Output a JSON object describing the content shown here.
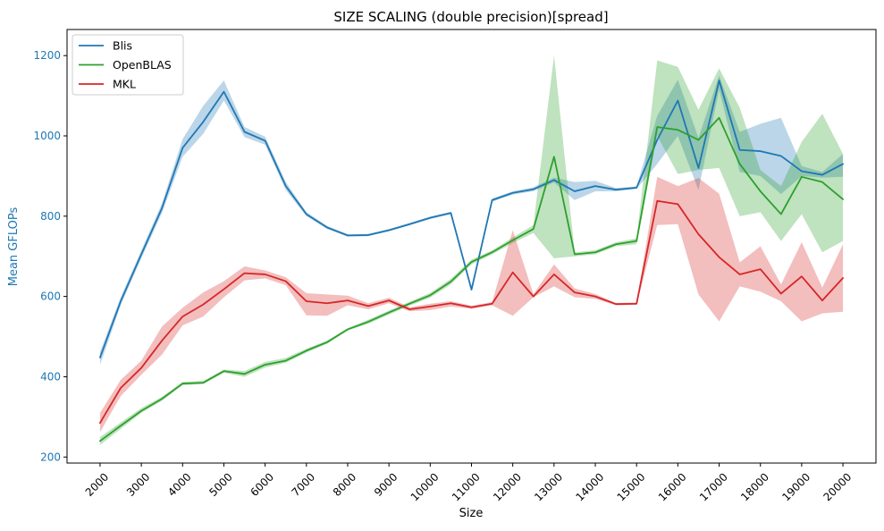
{
  "chart_data": {
    "type": "line",
    "title": "SIZE SCALING (double precision)[spread]",
    "xlabel": "Size",
    "ylabel": "Mean GFLOPs",
    "xlim": [
      1200,
      20800
    ],
    "ylim": [
      185,
      1265
    ],
    "x_ticks": [
      2000,
      3000,
      4000,
      5000,
      6000,
      7000,
      8000,
      9000,
      10000,
      11000,
      12000,
      13000,
      14000,
      15000,
      16000,
      17000,
      18000,
      19000,
      20000
    ],
    "y_ticks": [
      200,
      400,
      600,
      800,
      1000,
      1200
    ],
    "grid": false,
    "legend_position": "upper-left",
    "ylabel_color": "#1f77b4",
    "x": [
      2000,
      2500,
      3000,
      3500,
      4000,
      4500,
      5000,
      5500,
      6000,
      6500,
      7000,
      7500,
      8000,
      8500,
      9000,
      9500,
      10000,
      10500,
      11000,
      11500,
      12000,
      12500,
      13000,
      13500,
      14000,
      14500,
      15000,
      15500,
      16000,
      16500,
      17000,
      17500,
      18000,
      18500,
      19000,
      19500,
      20000
    ],
    "series": [
      {
        "name": "Blis",
        "color": "#1f77b4",
        "values": [
          448,
          588,
          705,
          820,
          970,
          1035,
          1110,
          1010,
          988,
          875,
          805,
          772,
          752,
          753,
          765,
          780,
          796,
          808,
          617,
          840,
          858,
          867,
          890,
          862,
          875,
          866,
          871,
          990,
          1088,
          920,
          1138,
          965,
          962,
          950,
          912,
          903,
          930
        ],
        "lower": [
          430,
          578,
          695,
          808,
          948,
          1005,
          1088,
          997,
          978,
          865,
          800,
          768,
          749,
          750,
          762,
          777,
          793,
          805,
          614,
          836,
          854,
          862,
          884,
          840,
          862,
          862,
          868,
          930,
          1000,
          865,
          1115,
          910,
          900,
          855,
          900,
          896,
          898
        ],
        "upper": [
          462,
          598,
          715,
          832,
          992,
          1075,
          1138,
          1022,
          998,
          885,
          810,
          776,
          755,
          756,
          768,
          783,
          799,
          811,
          620,
          844,
          862,
          872,
          896,
          885,
          888,
          870,
          874,
          1050,
          1140,
          995,
          1150,
          1010,
          1030,
          1045,
          925,
          910,
          955
        ]
      },
      {
        "name": "OpenBLAS",
        "color": "#2ca02c",
        "values": [
          240,
          278,
          315,
          345,
          383,
          385,
          414,
          407,
          430,
          440,
          465,
          486,
          518,
          537,
          560,
          582,
          603,
          637,
          686,
          710,
          740,
          768,
          948,
          705,
          710,
          730,
          738,
          1022,
          1015,
          990,
          1045,
          930,
          862,
          805,
          898,
          885,
          842
        ],
        "lower": [
          230,
          270,
          310,
          340,
          379,
          382,
          410,
          400,
          423,
          435,
          460,
          482,
          515,
          532,
          555,
          577,
          597,
          630,
          680,
          705,
          733,
          758,
          695,
          700,
          705,
          725,
          730,
          1000,
          905,
          915,
          920,
          800,
          810,
          738,
          805,
          710,
          738
        ],
        "upper": [
          250,
          286,
          322,
          350,
          387,
          390,
          418,
          414,
          437,
          447,
          470,
          490,
          521,
          542,
          565,
          587,
          609,
          644,
          692,
          715,
          747,
          778,
          1200,
          710,
          715,
          735,
          745,
          1188,
          1172,
          1065,
          1168,
          1070,
          915,
          875,
          985,
          1055,
          955
        ]
      },
      {
        "name": "MKL",
        "color": "#d62728",
        "values": [
          285,
          372,
          422,
          490,
          550,
          580,
          618,
          658,
          655,
          638,
          588,
          583,
          590,
          576,
          590,
          568,
          575,
          583,
          573,
          582,
          660,
          600,
          655,
          610,
          600,
          581,
          582,
          838,
          830,
          755,
          698,
          655,
          668,
          607,
          650,
          590,
          646
        ],
        "lower": [
          262,
          352,
          405,
          455,
          528,
          550,
          598,
          640,
          645,
          628,
          553,
          552,
          578,
          568,
          583,
          563,
          566,
          575,
          569,
          578,
          552,
          598,
          625,
          598,
          594,
          578,
          579,
          778,
          780,
          605,
          538,
          625,
          612,
          588,
          538,
          558,
          562
        ],
        "upper": [
          310,
          392,
          440,
          525,
          572,
          610,
          638,
          675,
          665,
          648,
          608,
          605,
          602,
          583,
          597,
          573,
          582,
          588,
          577,
          586,
          765,
          606,
          680,
          620,
          606,
          584,
          585,
          898,
          875,
          895,
          856,
          685,
          725,
          630,
          735,
          622,
          730
        ]
      }
    ]
  }
}
